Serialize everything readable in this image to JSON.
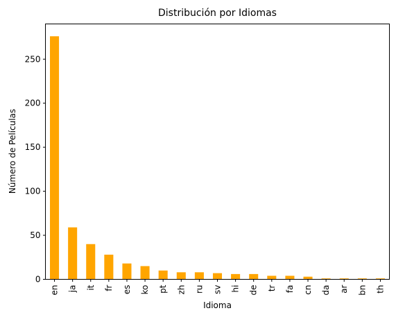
{
  "chart_data": {
    "type": "bar",
    "title": "Distribución por Idiomas",
    "xlabel": "Idioma",
    "ylabel": "Número de Películas",
    "categories": [
      "en",
      "ja",
      "it",
      "fr",
      "es",
      "ko",
      "pt",
      "zh",
      "ru",
      "sv",
      "hi",
      "de",
      "tr",
      "fa",
      "cn",
      "da",
      "ar",
      "bn",
      "th"
    ],
    "values": [
      276,
      59,
      40,
      28,
      18,
      15,
      10,
      8,
      8,
      7,
      6,
      6,
      4,
      4,
      3,
      1,
      1,
      1,
      1
    ],
    "ylim": [
      0,
      290
    ],
    "yticks": [
      0,
      50,
      100,
      150,
      200,
      250
    ],
    "bar_color": "#ffa500",
    "grid": false,
    "legend": "none"
  }
}
